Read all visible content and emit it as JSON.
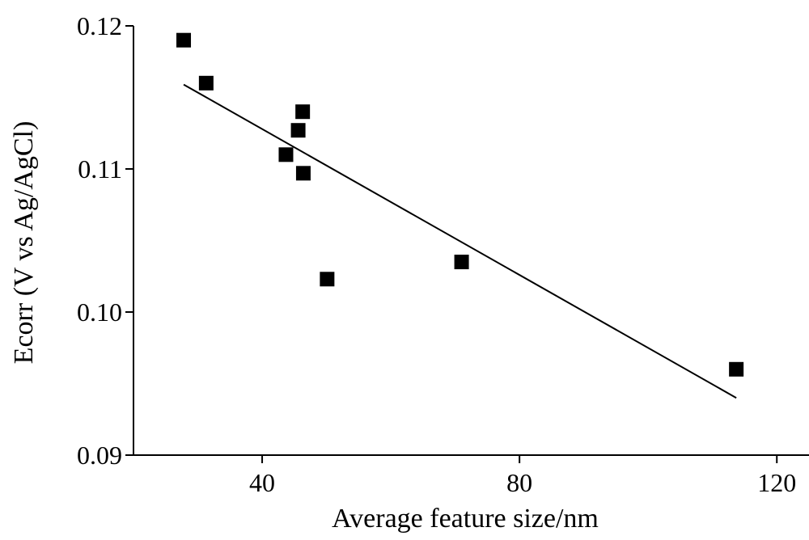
{
  "chart_data": {
    "type": "scatter",
    "title": "",
    "xlabel": "Average feature size/nm",
    "ylabel": "Ecorr (V vs Ag/AgCl)",
    "xlim": [
      20,
      125
    ],
    "ylim": [
      0.09,
      0.12
    ],
    "x_ticks": [
      40,
      80,
      120
    ],
    "x_tick_labels": [
      "40",
      "80",
      "120"
    ],
    "y_ticks": [
      0.09,
      0.1,
      0.11,
      0.12
    ],
    "y_tick_labels": [
      "0.09",
      "0.10",
      "0.11",
      "0.12"
    ],
    "grid": false,
    "legend": "none",
    "marker": "filled-square",
    "series": [
      {
        "points": [
          {
            "x": 27.8,
            "y": 0.119
          },
          {
            "x": 31.3,
            "y": 0.116
          },
          {
            "x": 43.7,
            "y": 0.111
          },
          {
            "x": 45.6,
            "y": 0.1127
          },
          {
            "x": 46.3,
            "y": 0.114
          },
          {
            "x": 46.4,
            "y": 0.1097
          },
          {
            "x": 50.1,
            "y": 0.1023
          },
          {
            "x": 71.0,
            "y": 0.1035
          },
          {
            "x": 113.7,
            "y": 0.096
          }
        ]
      }
    ],
    "fit_line": {
      "x": [
        27.8,
        113.7
      ],
      "y": [
        0.1159,
        0.094
      ]
    },
    "colors": {
      "marker": "#000000",
      "line": "#000000",
      "axis": "#000000"
    }
  }
}
